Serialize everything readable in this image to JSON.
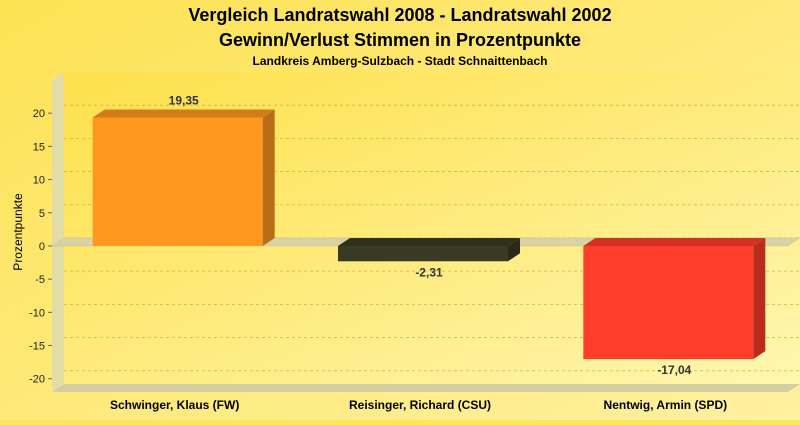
{
  "chart_data": {
    "type": "bar",
    "title": "Vergleich Landratswahl 2008 - Landratswahl 2002",
    "subtitle": "Gewinn/Verlust Stimmen in Prozentpunkte",
    "caption": "Landkreis Amberg-Sulzbach - Stadt Schnaittenbach",
    "ylabel": "Prozentpunkte",
    "xlabel": "",
    "ylim": [
      -22,
      25
    ],
    "yticks": [
      20,
      15,
      10,
      5,
      0,
      -5,
      -10,
      -15,
      -20
    ],
    "grid": true,
    "legend": "none",
    "categories": [
      "Schwinger, Klaus (FW)",
      "Reisinger, Richard (CSU)",
      "Nentwig, Armin (SPD)"
    ],
    "values": [
      19.35,
      -2.31,
      -17.04
    ],
    "value_labels": [
      "19,35",
      "-2,31",
      "-17,04"
    ],
    "colors": [
      "#ff981e",
      "#3a3a24",
      "#ff3d2a"
    ]
  }
}
